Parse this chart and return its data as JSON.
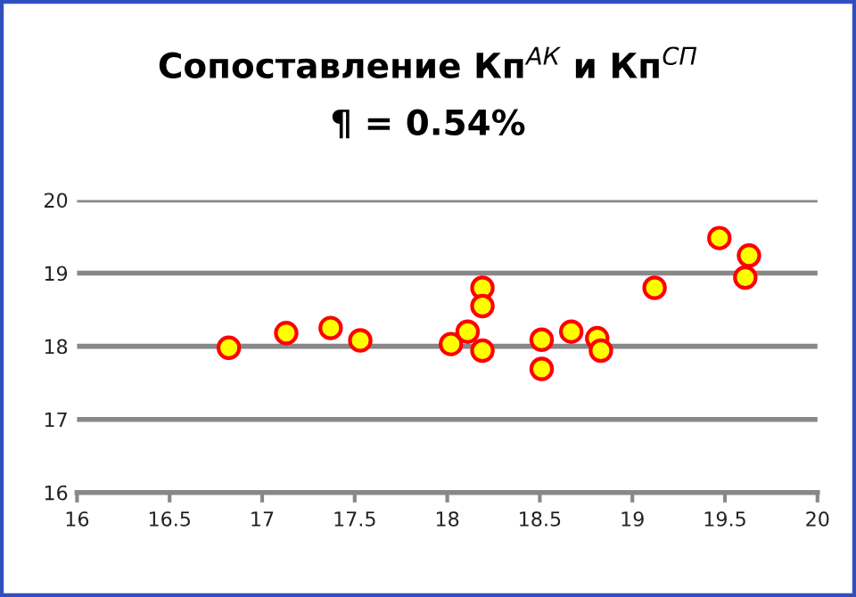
{
  "chart_data": {
    "type": "scatter",
    "title": "Сопоставление Кп$^{АК}$ и Кп$^{СП}$",
    "subtitle": "¶ = 0.54%",
    "x": [
      16.82,
      17.13,
      17.37,
      17.53,
      18.02,
      18.11,
      18.19,
      18.19,
      18.19,
      18.51,
      18.51,
      18.67,
      18.81,
      18.83,
      19.12,
      19.47,
      19.63,
      19.61
    ],
    "series": [
      {
        "color": "#ffff00",
        "values": [
          17.98,
          18.18,
          18.25,
          18.08,
          18.03,
          18.2,
          18.8,
          18.55,
          17.94,
          18.09,
          17.69,
          18.2,
          18.11,
          17.94,
          18.8,
          19.48,
          19.24,
          18.94
        ]
      }
    ],
    "xlim": [
      16,
      20
    ],
    "xticks": [
      16,
      16.5,
      17,
      17.5,
      18,
      18.5,
      19,
      19.5,
      20
    ],
    "ylim": [
      16,
      20
    ],
    "yticks": [
      16,
      17,
      18,
      19,
      20
    ],
    "grid": "y",
    "marker": "circle",
    "legend": false
  }
}
